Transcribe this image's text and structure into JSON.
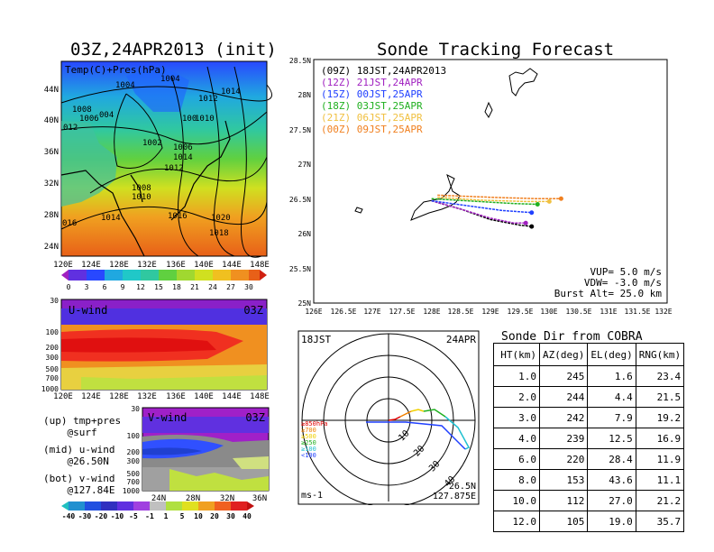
{
  "left_title": "03Z,24APR2013 (init)",
  "right_title": "Sonde Tracking Forecast",
  "surface_map": {
    "label": "Temp(C)+Pres(hPa)",
    "lat_ticks": [
      "44N",
      "40N",
      "36N",
      "32N",
      "28N",
      "24N"
    ],
    "lon_ticks": [
      "120E",
      "124E",
      "128E",
      "132E",
      "136E",
      "140E",
      "144E",
      "148E"
    ],
    "pressure_labels": [
      "1004",
      "1004",
      "1008",
      "1006",
      "004",
      "1012",
      "1014",
      "012",
      "100",
      "1010",
      "1002",
      "1006",
      "1014",
      "1012",
      "1008",
      "1010",
      "016",
      "1014",
      "1016",
      "1020",
      "1018"
    ],
    "colorbar_ticks": [
      "0",
      "3",
      "6",
      "9",
      "12",
      "15",
      "18",
      "21",
      "24",
      "27",
      "30"
    ]
  },
  "uwind": {
    "label": "U-wind",
    "time": "03Z",
    "y_ticks": [
      "30",
      "100",
      "200",
      "300",
      "500",
      "700",
      "1000"
    ],
    "x_ticks": [
      "120E",
      "124E",
      "128E",
      "132E",
      "136E",
      "140E",
      "144E",
      "148E"
    ]
  },
  "vwind": {
    "label": "V-wind",
    "time": "03Z",
    "y_ticks": [
      "30",
      "100",
      "200",
      "300",
      "500",
      "700",
      "1000"
    ],
    "x_ticks": [
      "24N",
      "28N",
      "32N",
      "36N"
    ],
    "colorbar_ticks": [
      "-40",
      "-30",
      "-20",
      "-10",
      "-5",
      "-1",
      "1",
      "5",
      "10",
      "20",
      "30",
      "40"
    ]
  },
  "notes": [
    {
      "line1": "(up) tmp+pres",
      "line2": "@surf"
    },
    {
      "line1": "(mid) u-wind",
      "line2": "@26.50N"
    },
    {
      "line1": "(bot) v-wind",
      "line2": "@127.84E"
    }
  ],
  "tracking": {
    "lat_ticks": [
      "28.5N",
      "28N",
      "27.5N",
      "27N",
      "26.5N",
      "26N",
      "25.5N",
      "25N"
    ],
    "lon_ticks": [
      "126E",
      "126.5E",
      "127E",
      "127.5E",
      "128E",
      "128.5E",
      "129E",
      "129.5E",
      "130E",
      "130.5E",
      "131E",
      "131.5E",
      "132E"
    ],
    "legend": [
      {
        "code": "(09Z)",
        "time": "18JST,24APR2013",
        "color": "#000000"
      },
      {
        "code": "(12Z)",
        "time": "21JST,24APR",
        "color": "#a020c0"
      },
      {
        "code": "(15Z)",
        "time": "00JST,25APR",
        "color": "#2040ff"
      },
      {
        "code": "(18Z)",
        "time": "03JST,25APR",
        "color": "#20b020"
      },
      {
        "code": "(21Z)",
        "time": "06JST,25APR",
        "color": "#f0c040"
      },
      {
        "code": "(00Z)",
        "time": "09JST,25APR",
        "color": "#f08020"
      }
    ],
    "params": [
      "VUP= 5.0 m/s",
      "VDW= -3.0 m/s",
      "Burst Alt= 25.0 km"
    ]
  },
  "chart_data": {
    "type": "line",
    "title": "Sonde Tracking Forecast",
    "xlim": [
      126,
      132
    ],
    "ylim": [
      25,
      28.5
    ],
    "series": [
      {
        "name": "(09Z) 18JST,24APR2013",
        "x": [
          128.0,
          128.5,
          129.0,
          129.5,
          129.7
        ],
        "y": [
          26.47,
          26.35,
          26.2,
          26.12,
          26.1
        ]
      },
      {
        "name": "(12Z) 21JST,24APR",
        "x": [
          128.0,
          128.5,
          129.0,
          129.4,
          129.6
        ],
        "y": [
          26.47,
          26.35,
          26.22,
          26.15,
          26.15
        ]
      },
      {
        "name": "(15Z) 00JST,25APR",
        "x": [
          128.0,
          128.6,
          129.2,
          129.7
        ],
        "y": [
          26.47,
          26.4,
          26.33,
          26.3
        ]
      },
      {
        "name": "(18Z) 03JST,25APR",
        "x": [
          128.0,
          128.8,
          129.4,
          129.8
        ],
        "y": [
          26.5,
          26.46,
          26.43,
          26.42
        ]
      },
      {
        "name": "(21Z) 06JST,25APR",
        "x": [
          128.1,
          128.8,
          129.6,
          130.0
        ],
        "y": [
          26.52,
          26.48,
          26.46,
          26.46
        ]
      },
      {
        "name": "(00Z) 09JST,25APR",
        "x": [
          128.1,
          129.0,
          129.8,
          130.2
        ],
        "y": [
          26.55,
          26.52,
          26.5,
          26.5
        ]
      }
    ]
  },
  "hodograph": {
    "left_label": "18JST",
    "right_label": "24APR",
    "ring_labels": [
      "10",
      "20",
      "30",
      "40"
    ],
    "units": "ms-1",
    "position": [
      "26.5N",
      "127.875E"
    ],
    "pressure_legend": [
      {
        "label": "≥850hPa",
        "color": "#e00000"
      },
      {
        "label": "≥700",
        "color": "#f08000"
      },
      {
        "label": "≥500",
        "color": "#f0d000"
      },
      {
        "label": "≥250",
        "color": "#20b020"
      },
      {
        "label": "≥100",
        "color": "#20c0d0"
      },
      {
        "label": "<100",
        "color": "#2040ff"
      }
    ]
  },
  "sonde_table": {
    "title": "Sonde Dir from COBRA",
    "headers": [
      "HT(km)",
      "AZ(deg)",
      "EL(deg)",
      "RNG(km)"
    ],
    "rows": [
      [
        "1.0",
        "245",
        "1.6",
        "23.4"
      ],
      [
        "2.0",
        "244",
        "4.4",
        "21.5"
      ],
      [
        "3.0",
        "242",
        "7.9",
        "19.2"
      ],
      [
        "4.0",
        "239",
        "12.5",
        "16.9"
      ],
      [
        "6.0",
        "220",
        "28.4",
        "11.9"
      ],
      [
        "8.0",
        "153",
        "43.6",
        "11.1"
      ],
      [
        "10.0",
        "112",
        "27.0",
        "21.2"
      ],
      [
        "12.0",
        "105",
        "19.0",
        "35.7"
      ]
    ]
  }
}
